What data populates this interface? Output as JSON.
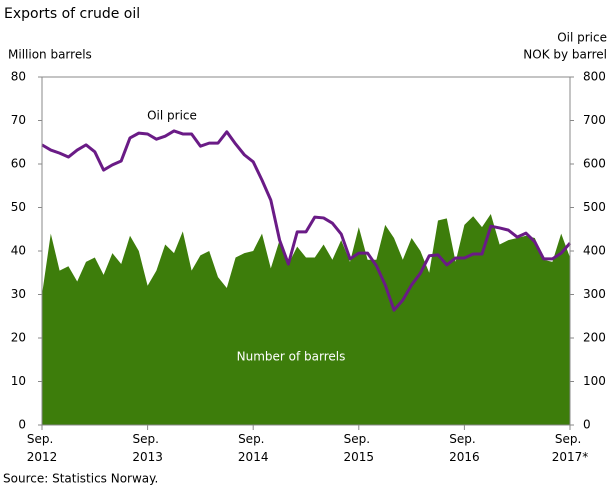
{
  "chart_data": {
    "type": "area-line",
    "title": "Exports of crude oil",
    "y_label": "Million barrels",
    "y2_label": [
      "Oil price",
      "NOK by barrel"
    ],
    "source": "Source: Statistics Norway.",
    "categories": [
      "Sep. 2012",
      null,
      null,
      null,
      null,
      null,
      null,
      null,
      null,
      null,
      null,
      null,
      "Sep. 2013",
      null,
      null,
      null,
      null,
      null,
      null,
      null,
      null,
      null,
      null,
      null,
      "Sep. 2014",
      null,
      null,
      null,
      null,
      null,
      null,
      null,
      null,
      null,
      null,
      null,
      "Sep. 2015",
      null,
      null,
      null,
      null,
      null,
      null,
      null,
      null,
      null,
      null,
      null,
      "Sep. 2016",
      null,
      null,
      null,
      null,
      null,
      null,
      null,
      null,
      null,
      null,
      null,
      "Sep. 2017*"
    ],
    "series": [
      {
        "name": "Number of barrels",
        "color": "#3d7d0b",
        "values": [
          30,
          44,
          35.5,
          36.5,
          33,
          37.5,
          38.5,
          34.5,
          39.5,
          37,
          43.5,
          40,
          32,
          35.5,
          41.5,
          39.5,
          44.5,
          35.5,
          39,
          40,
          34,
          31.5,
          38.5,
          39.5,
          40,
          44,
          36,
          42.5,
          37,
          41,
          38.5,
          38.5,
          41.5,
          38,
          42.5,
          37.5,
          45.5,
          38,
          38,
          46,
          43,
          38,
          43,
          40,
          35,
          47,
          47.5,
          37.5,
          46,
          48,
          45.5,
          48.5,
          41.5,
          42.5,
          43,
          43.5,
          43,
          38,
          37.5,
          44,
          38.5
        ]
      },
      {
        "name": "Oil price",
        "color": "#6a1b86",
        "axis": "y2",
        "values": [
          644,
          632,
          625,
          616,
          632,
          644,
          628,
          586,
          598,
          607,
          660,
          671,
          669,
          657,
          664,
          676,
          669,
          669,
          641,
          648,
          648,
          674,
          646,
          621,
          605,
          563,
          517,
          425,
          370,
          444,
          444,
          478,
          476,
          464,
          439,
          382,
          395,
          395,
          366,
          322,
          264,
          287,
          322,
          349,
          389,
          391,
          368,
          384,
          384,
          393,
          393,
          457,
          453,
          448,
          432,
          441,
          421,
          382,
          382,
          395,
          418
        ]
      }
    ],
    "ylim": [
      0,
      80
    ],
    "yticks": [
      0,
      10,
      20,
      30,
      40,
      50,
      60,
      70,
      80
    ],
    "y2lim": [
      0,
      800
    ],
    "y2ticks": [
      0,
      100,
      200,
      300,
      400,
      500,
      600,
      700,
      800
    ],
    "grid": false
  }
}
